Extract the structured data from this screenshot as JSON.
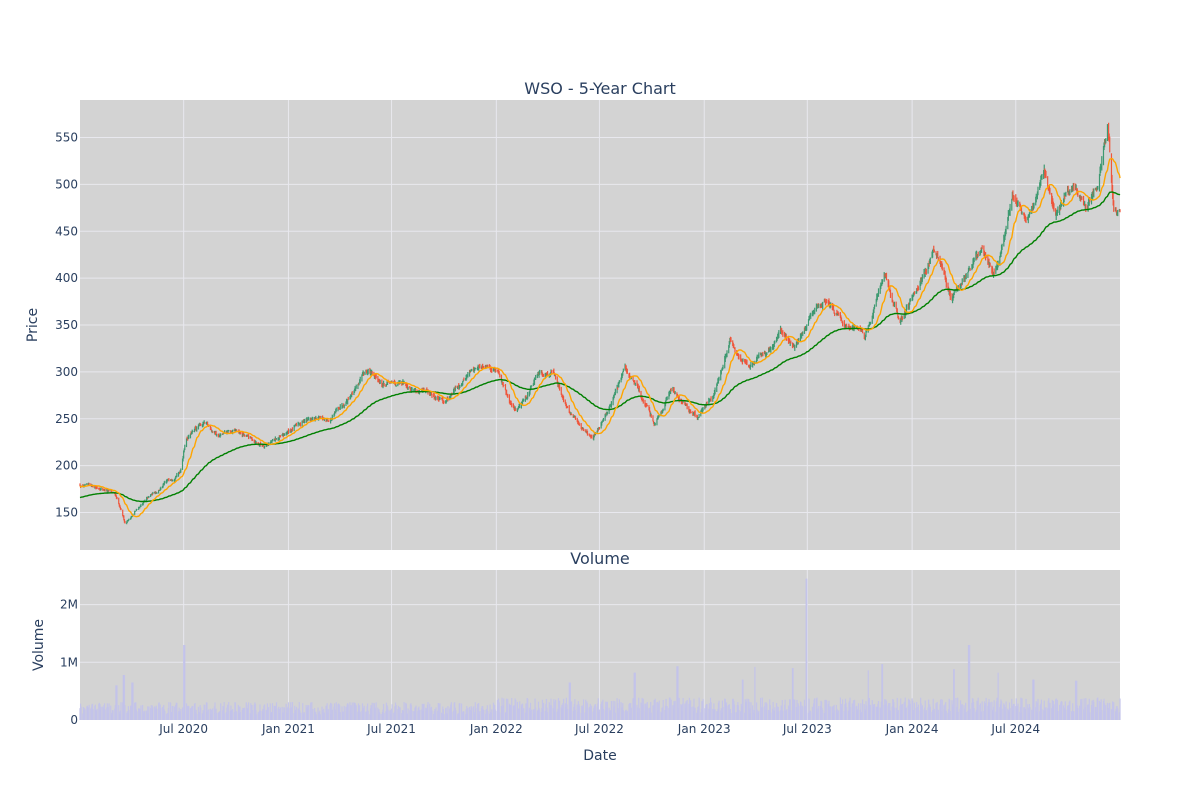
{
  "colors": {
    "plot_bg": "#d3d3d3",
    "grid": "#e8e8ee",
    "up": "#3d9970",
    "down": "#ef553b",
    "ma_short": "#ffa500",
    "ma_long": "#008000",
    "volume": "#c3c3ea",
    "text": "#2a3f5f"
  },
  "chart_data": [
    {
      "type": "candlestick",
      "title": "WSO - 5-Year Chart",
      "xlabel": "",
      "ylabel": "Price",
      "x_range": [
        "2020-01-01",
        "2024-12-31"
      ],
      "ylim": [
        110,
        590
      ],
      "yticks": [
        150,
        200,
        250,
        300,
        350,
        400,
        450,
        500,
        550
      ],
      "grid": true,
      "legend": "none",
      "anchors": [
        [
          "2020-01-01",
          179
        ],
        [
          "2020-02-10",
          176
        ],
        [
          "2020-03-01",
          170
        ],
        [
          "2020-03-20",
          138
        ],
        [
          "2020-04-20",
          160
        ],
        [
          "2020-05-25",
          178
        ],
        [
          "2020-06-25",
          195
        ],
        [
          "2020-07-05",
          230
        ],
        [
          "2020-08-05",
          245
        ],
        [
          "2020-09-01",
          232
        ],
        [
          "2020-10-01",
          236
        ],
        [
          "2020-11-15",
          222
        ],
        [
          "2020-12-20",
          230
        ],
        [
          "2021-02-01",
          250
        ],
        [
          "2021-03-15",
          248
        ],
        [
          "2021-05-20",
          302
        ],
        [
          "2021-06-15",
          288
        ],
        [
          "2021-08-01",
          285
        ],
        [
          "2021-10-01",
          268
        ],
        [
          "2021-11-15",
          300
        ],
        [
          "2021-12-15",
          310
        ],
        [
          "2022-01-05",
          302
        ],
        [
          "2022-01-25",
          265
        ],
        [
          "2022-02-05",
          260
        ],
        [
          "2022-03-15",
          295
        ],
        [
          "2022-04-10",
          302
        ],
        [
          "2022-05-10",
          255
        ],
        [
          "2022-06-20",
          228
        ],
        [
          "2022-07-20",
          265
        ],
        [
          "2022-08-15",
          302
        ],
        [
          "2022-09-05",
          283
        ],
        [
          "2022-10-05",
          245
        ],
        [
          "2022-11-05",
          283
        ],
        [
          "2022-12-20",
          250
        ],
        [
          "2023-01-15",
          275
        ],
        [
          "2023-02-15",
          330
        ],
        [
          "2023-03-20",
          305
        ],
        [
          "2023-04-20",
          320
        ],
        [
          "2023-05-15",
          345
        ],
        [
          "2023-06-10",
          325
        ],
        [
          "2023-07-01",
          352
        ],
        [
          "2023-08-01",
          378
        ],
        [
          "2023-09-01",
          355
        ],
        [
          "2023-10-10",
          340
        ],
        [
          "2023-11-15",
          402
        ],
        [
          "2023-12-10",
          355
        ],
        [
          "2024-01-15",
          395
        ],
        [
          "2024-02-10",
          430
        ],
        [
          "2024-03-10",
          380
        ],
        [
          "2024-03-30",
          395
        ],
        [
          "2024-05-01",
          432
        ],
        [
          "2024-05-25",
          402
        ],
        [
          "2024-06-25",
          485
        ],
        [
          "2024-07-20",
          465
        ],
        [
          "2024-08-20",
          512
        ],
        [
          "2024-09-10",
          470
        ],
        [
          "2024-10-10",
          500
        ],
        [
          "2024-11-01",
          470
        ],
        [
          "2024-11-20",
          495
        ],
        [
          "2024-12-10",
          565
        ],
        [
          "2024-12-20",
          475
        ],
        [
          "2024-12-31",
          470
        ]
      ],
      "series": [
        {
          "kind": "candles",
          "up_color": "#3d9970",
          "down_color": "#ef553b"
        },
        {
          "kind": "moving-average",
          "window_days": 20,
          "color": "#ffa500"
        },
        {
          "kind": "moving-average",
          "window_days": 200,
          "color": "#008000"
        }
      ]
    },
    {
      "type": "bar",
      "title": "Volume",
      "xlabel": "Date",
      "ylabel": "Volume",
      "ylim": [
        0,
        2600000
      ],
      "yticks": [
        {
          "value": 0,
          "label": "0"
        },
        {
          "value": 1000000,
          "label": "1M"
        },
        {
          "value": 2000000,
          "label": "2M"
        }
      ],
      "xticks": [
        {
          "date": "2020-07-01",
          "label": "Jul 2020"
        },
        {
          "date": "2021-01-01",
          "label": "Jan 2021"
        },
        {
          "date": "2021-07-01",
          "label": "Jul 2021"
        },
        {
          "date": "2022-01-01",
          "label": "Jan 2022"
        },
        {
          "date": "2022-07-01",
          "label": "Jul 2022"
        },
        {
          "date": "2023-01-01",
          "label": "Jan 2023"
        },
        {
          "date": "2023-07-01",
          "label": "Jul 2023"
        },
        {
          "date": "2024-01-01",
          "label": "Jan 2024"
        },
        {
          "date": "2024-07-01",
          "label": "Jul 2024"
        }
      ],
      "baseline_volume": 240000,
      "spikes": [
        [
          "2020-03-18",
          780000
        ],
        [
          "2020-03-05",
          600000
        ],
        [
          "2020-04-02",
          650000
        ],
        [
          "2020-07-02",
          1300000
        ],
        [
          "2022-05-10",
          650000
        ],
        [
          "2022-09-01",
          820000
        ],
        [
          "2022-11-15",
          930000
        ],
        [
          "2023-03-10",
          700000
        ],
        [
          "2023-04-01",
          920000
        ],
        [
          "2023-06-05",
          900000
        ],
        [
          "2023-06-30",
          2450000
        ],
        [
          "2023-10-15",
          860000
        ],
        [
          "2023-11-10",
          970000
        ],
        [
          "2024-03-15",
          880000
        ],
        [
          "2024-04-10",
          1300000
        ],
        [
          "2024-06-01",
          820000
        ],
        [
          "2024-08-01",
          700000
        ],
        [
          "2024-10-15",
          680000
        ]
      ]
    }
  ]
}
